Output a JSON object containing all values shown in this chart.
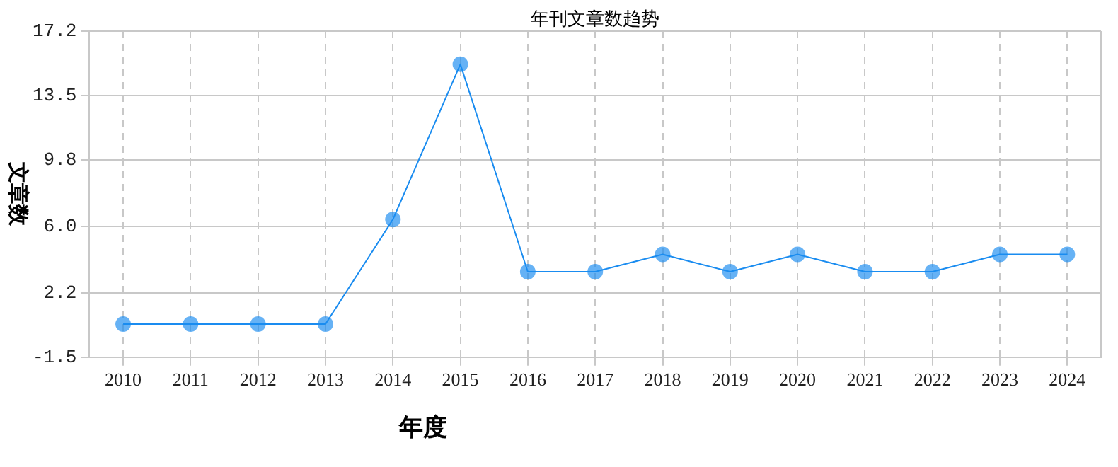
{
  "chart_data": {
    "type": "line",
    "title": "年刊文章数趋势",
    "xlabel": "年度",
    "ylabel": "文章数",
    "categories": [
      "2010",
      "2011",
      "2012",
      "2013",
      "2014",
      "2015",
      "2016",
      "2017",
      "2018",
      "2019",
      "2020",
      "2021",
      "2022",
      "2023",
      "2024"
    ],
    "series": [
      {
        "color": "#1a8cf0",
        "values": [
          0.4,
          0.4,
          0.4,
          0.4,
          6.4,
          15.3,
          3.4,
          3.4,
          4.4,
          3.4,
          4.4,
          3.4,
          3.4,
          4.4,
          4.4
        ]
      }
    ],
    "ylim": [
      -1.5,
      17.2
    ],
    "yticks": [
      -1.5,
      2.2,
      {
        "value": 6,
        "label": "6.0"
      },
      9.8,
      13.5,
      17.2
    ],
    "grid": true,
    "marker": "circle",
    "line_style": "solid",
    "legend": false
  }
}
